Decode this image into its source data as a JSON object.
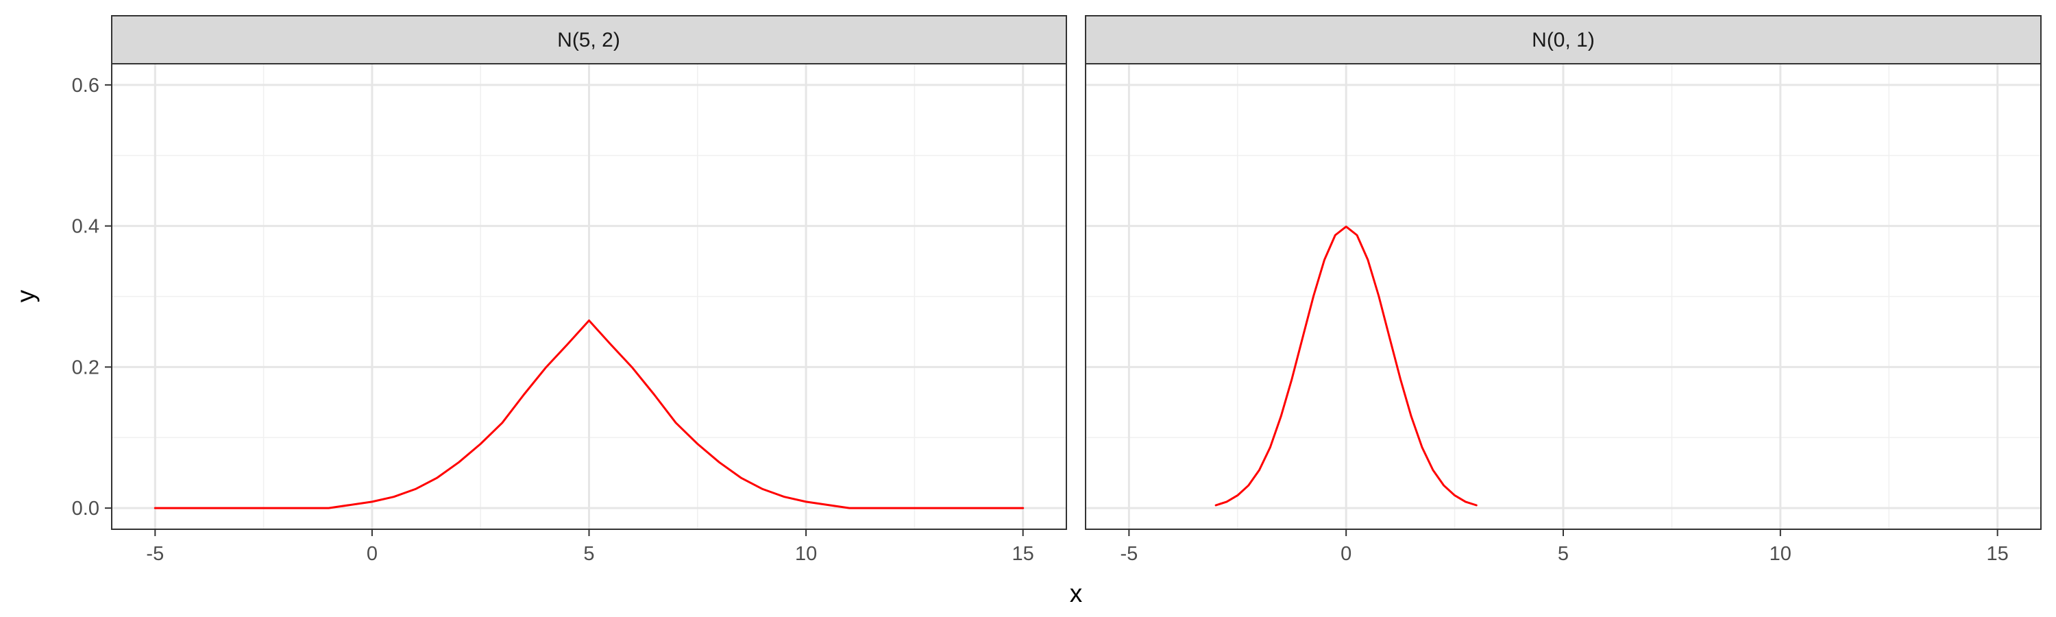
{
  "chart_data": {
    "type": "line",
    "xlabel": "x",
    "ylabel": "y",
    "xlim": [
      -6,
      16
    ],
    "ylim": [
      -0.03,
      0.63
    ],
    "x_ticks": [
      -5,
      0,
      5,
      10,
      15
    ],
    "x_tick_labels": [
      "-5",
      "0",
      "5",
      "10",
      "15"
    ],
    "y_ticks": [
      0.0,
      0.2,
      0.4,
      0.6
    ],
    "y_tick_labels": [
      "0.0",
      "0.2",
      "0.4",
      "0.6"
    ],
    "grid": true,
    "line_color": "#ff0000",
    "panels": [
      {
        "strip_label": "N(5, 2)",
        "series": [
          {
            "x": [
              -5,
              -4,
              -3,
              -2,
              -1,
              0,
              0.5,
              1,
              1.5,
              2,
              2.5,
              3,
              3.5,
              4,
              4.5,
              5,
              5.5,
              6,
              6.5,
              7,
              7.5,
              8,
              8.5,
              9,
              9.5,
              10,
              11,
              12,
              13,
              14,
              15
            ],
            "y": [
              0.0,
              0.0,
              0.0,
              0.0,
              0.0,
              0.009,
              0.016,
              0.027,
              0.043,
              0.065,
              0.091,
              0.121,
              0.161,
              0.199,
              0.232,
              0.266,
              0.232,
              0.199,
              0.161,
              0.121,
              0.091,
              0.065,
              0.043,
              0.027,
              0.016,
              0.009,
              0.0,
              0.0,
              0.0,
              0.0,
              0.0
            ]
          }
        ]
      },
      {
        "strip_label": "N(0, 1)",
        "series": [
          {
            "x": [
              -3,
              -2.75,
              -2.5,
              -2.25,
              -2,
              -1.75,
              -1.5,
              -1.25,
              -1,
              -0.75,
              -0.5,
              -0.25,
              0,
              0.25,
              0.5,
              0.75,
              1,
              1.25,
              1.5,
              1.75,
              2,
              2.25,
              2.5,
              2.75,
              3
            ],
            "y": [
              0.004,
              0.009,
              0.018,
              0.032,
              0.054,
              0.086,
              0.13,
              0.183,
              0.242,
              0.301,
              0.352,
              0.387,
              0.399,
              0.387,
              0.352,
              0.301,
              0.242,
              0.183,
              0.13,
              0.086,
              0.054,
              0.032,
              0.018,
              0.009,
              0.004
            ]
          }
        ]
      }
    ]
  }
}
